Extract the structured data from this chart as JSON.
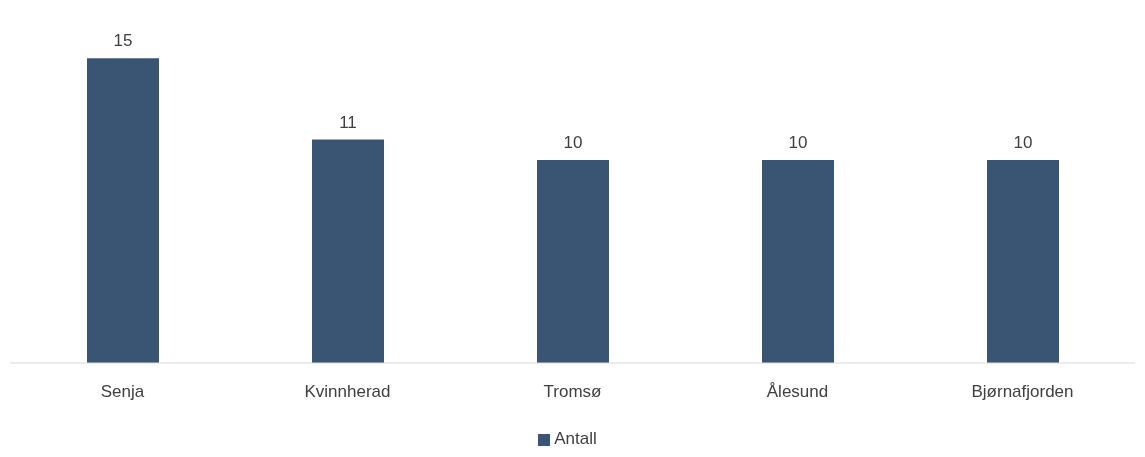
{
  "chart_data": {
    "type": "bar",
    "categories": [
      "Senja",
      "Kvinnherad",
      "Tromsø",
      "Ålesund",
      "Bjørnafjorden"
    ],
    "series": [
      {
        "name": "Antall",
        "color": "#3a5573",
        "values": [
          15,
          11,
          10,
          10,
          10
        ]
      }
    ],
    "data_labels": true,
    "legend": "bottom",
    "grid": false
  }
}
